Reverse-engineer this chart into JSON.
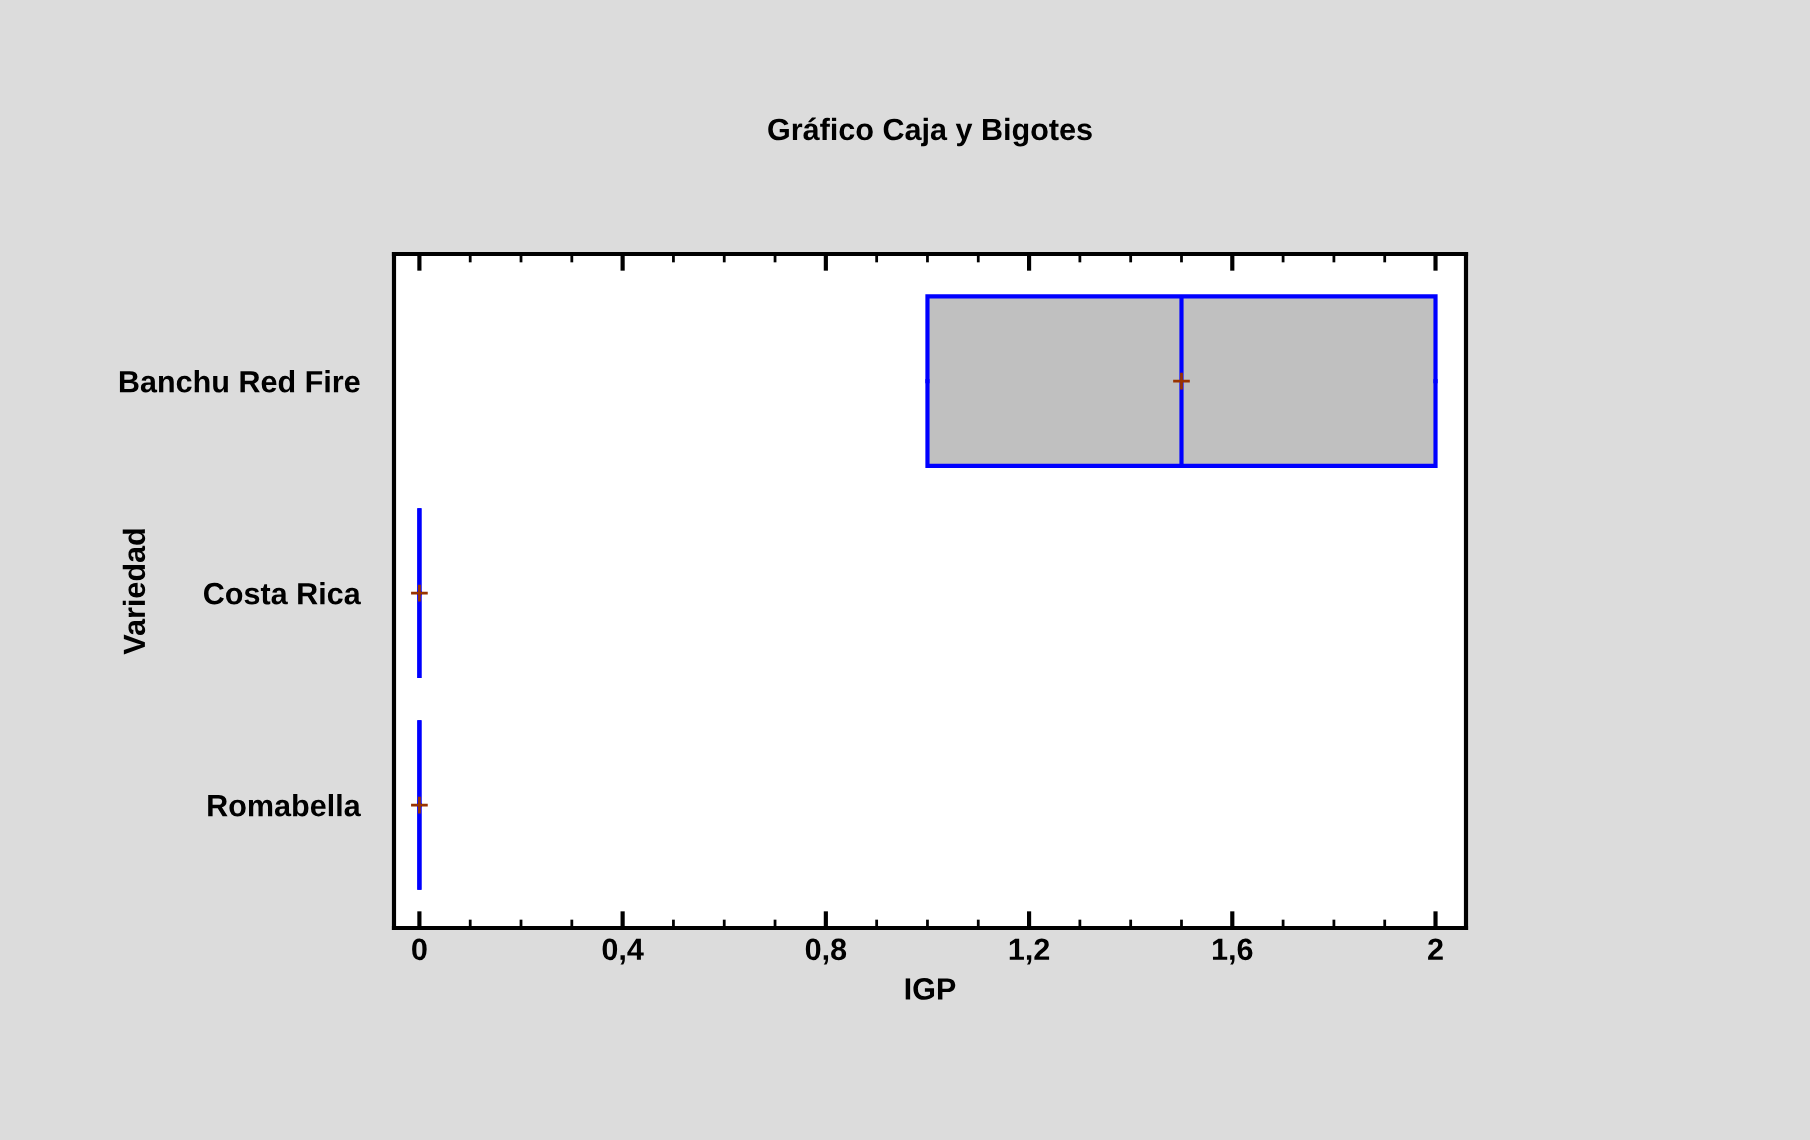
{
  "chart_data": {
    "type": "box",
    "title": "Gráfico Caja y Bigotes",
    "xlabel": "IGP",
    "ylabel": "Variedad",
    "orientation": "horizontal",
    "categories": [
      "Banchu Red Fire",
      "Costa Rica",
      "Romabella"
    ],
    "boxes": [
      {
        "low": 1,
        "q1": 1,
        "median": 1.5,
        "q3": 2,
        "high": 2,
        "mean": 1.5
      },
      {
        "low": 0,
        "q1": 0,
        "median": 0,
        "q3": 0,
        "high": 0,
        "mean": 0
      },
      {
        "low": 0,
        "q1": 0,
        "median": 0,
        "q3": 0,
        "high": 0,
        "mean": 0
      }
    ],
    "colors": [
      "#c0c0c0",
      "#0000ff",
      "#0000ff"
    ],
    "xlim": [
      -0.05,
      2.06
    ],
    "xticks": [
      0,
      {
        "value": 0.4,
        "label": "0,4"
      },
      {
        "value": 0.8,
        "label": "0,8"
      },
      {
        "value": 1.2,
        "label": "1,2"
      },
      {
        "value": 1.6,
        "label": "1,6"
      },
      2,
      {
        "value": 0.1,
        "label": null
      },
      {
        "value": 0.2,
        "label": null
      },
      {
        "value": 0.3,
        "label": null
      },
      {
        "value": 0.5,
        "label": null
      },
      {
        "value": 0.6,
        "label": null
      },
      {
        "value": 0.7,
        "label": null
      },
      {
        "value": 0.9,
        "label": null
      },
      {
        "value": 1.0,
        "label": null
      },
      {
        "value": 1.1,
        "label": null
      },
      {
        "value": 1.3,
        "label": null
      },
      {
        "value": 1.4,
        "label": null
      },
      {
        "value": 1.5,
        "label": null
      },
      {
        "value": 1.7,
        "label": null
      },
      {
        "value": 1.8,
        "label": null
      },
      {
        "value": 1.9,
        "label": null
      }
    ]
  }
}
